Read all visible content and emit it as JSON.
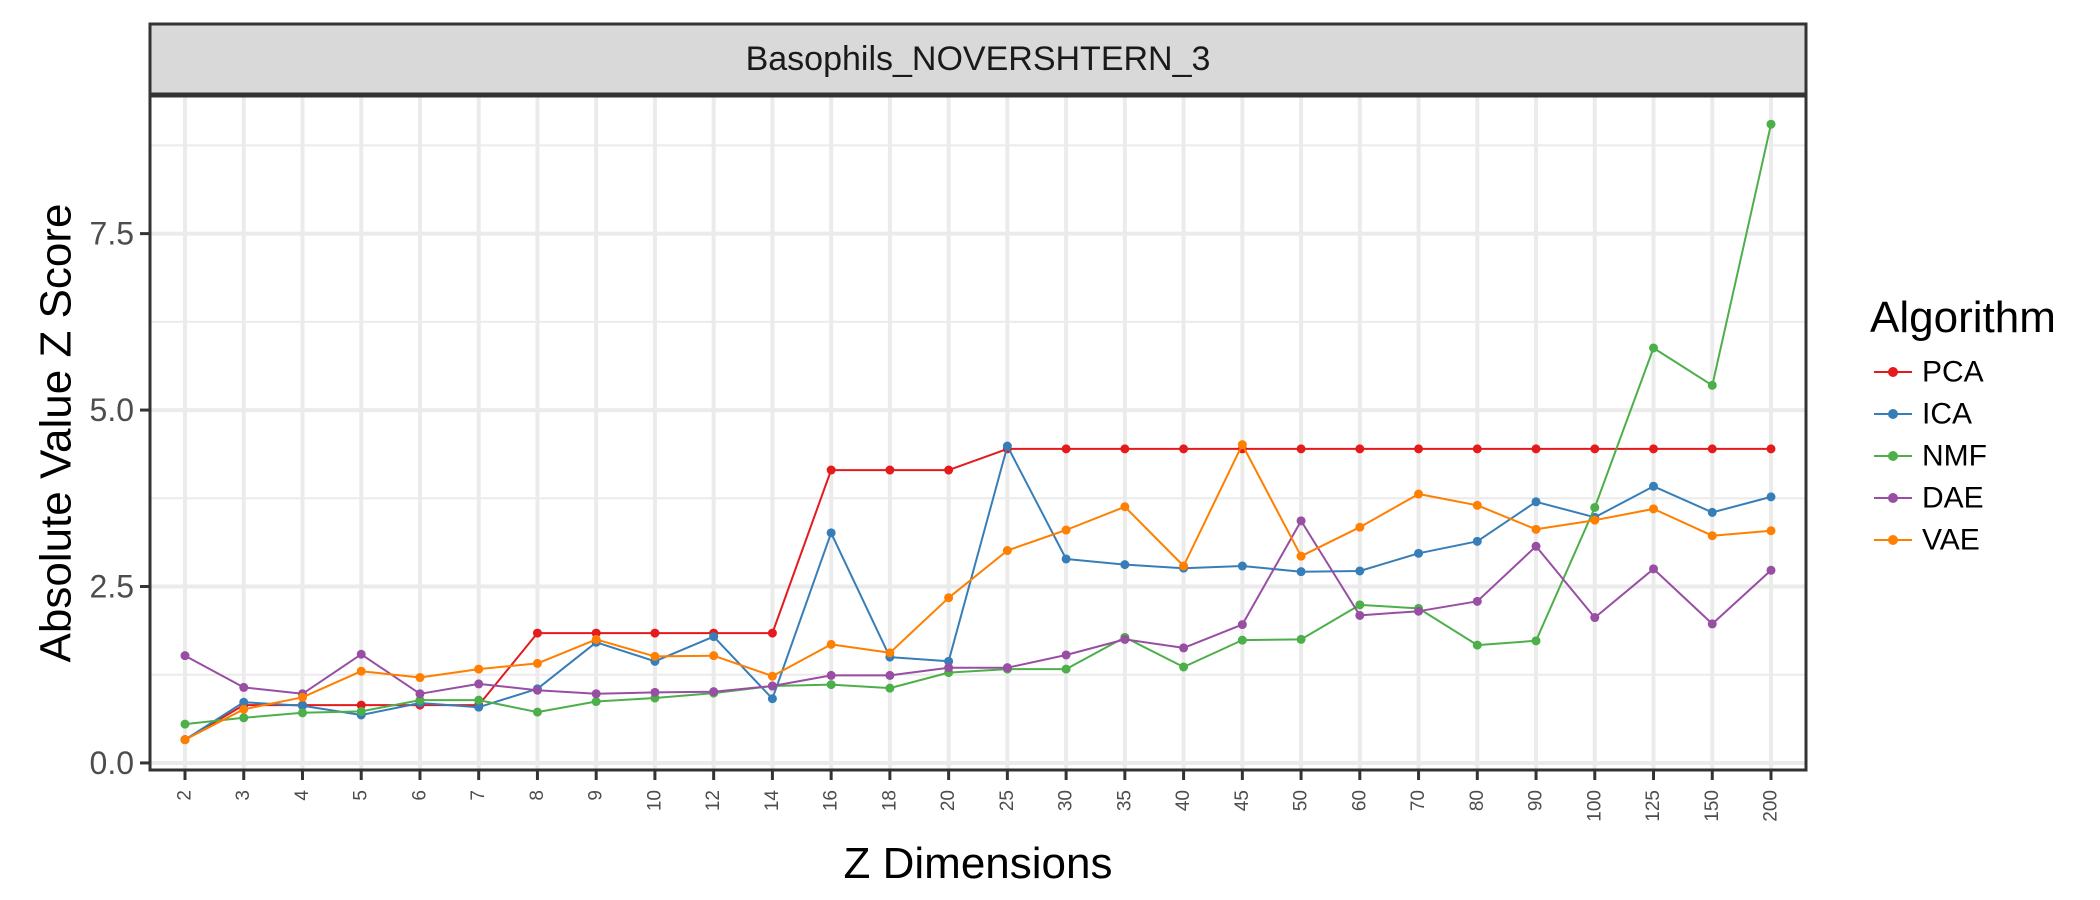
{
  "chart_data": {
    "type": "line",
    "facet_title": "Basophils_NOVERSHTERN_3",
    "xlabel": "Z Dimensions",
    "ylabel": "Absolute Value Z Score",
    "categories": [
      "2",
      "3",
      "4",
      "5",
      "6",
      "7",
      "8",
      "9",
      "10",
      "12",
      "14",
      "16",
      "18",
      "20",
      "25",
      "30",
      "35",
      "40",
      "45",
      "50",
      "60",
      "70",
      "80",
      "90",
      "100",
      "125",
      "150",
      "200"
    ],
    "y_ticks": [
      0,
      2.5,
      5,
      7.5
    ],
    "y_tick_labels": [
      "0.0",
      "2.5",
      "5.0",
      "7.5"
    ],
    "ylim": [
      -0.1,
      9.45
    ],
    "grid": true,
    "legend_title": "Algorithm",
    "legend_position": "right",
    "series": [
      {
        "name": "PCA",
        "color": "#E41A1C",
        "values": [
          0.33,
          0.82,
          0.82,
          0.82,
          0.82,
          0.82,
          1.84,
          1.84,
          1.84,
          1.84,
          1.84,
          4.15,
          4.15,
          4.15,
          4.45,
          4.45,
          4.45,
          4.45,
          4.45,
          4.45,
          4.45,
          4.45,
          4.45,
          4.45,
          4.45,
          4.45,
          4.45,
          4.45
        ]
      },
      {
        "name": "ICA",
        "color": "#377EB8",
        "values": [
          0.33,
          0.86,
          0.81,
          0.68,
          0.85,
          0.79,
          1.05,
          1.71,
          1.44,
          1.79,
          0.91,
          3.26,
          1.5,
          1.44,
          4.49,
          2.89,
          2.81,
          2.76,
          2.79,
          2.71,
          2.72,
          2.97,
          3.14,
          3.7,
          3.48,
          3.92,
          3.55,
          3.77
        ]
      },
      {
        "name": "NMF",
        "color": "#4DAF4A",
        "values": [
          0.55,
          0.64,
          0.71,
          0.73,
          0.89,
          0.89,
          0.72,
          0.87,
          0.92,
          0.99,
          1.09,
          1.11,
          1.06,
          1.28,
          1.33,
          1.33,
          1.78,
          1.36,
          1.74,
          1.75,
          2.24,
          2.19,
          1.67,
          1.73,
          3.62,
          5.88,
          5.35,
          9.05
        ]
      },
      {
        "name": "DAE",
        "color": "#984EA3",
        "values": [
          1.52,
          1.07,
          0.98,
          1.54,
          0.98,
          1.12,
          1.03,
          0.98,
          1.0,
          1.01,
          1.09,
          1.24,
          1.24,
          1.35,
          1.35,
          1.53,
          1.75,
          1.63,
          1.96,
          3.43,
          2.09,
          2.15,
          2.29,
          3.07,
          2.06,
          2.75,
          1.97,
          2.73
        ]
      },
      {
        "name": "VAE",
        "color": "#FF7F00",
        "values": [
          0.33,
          0.76,
          0.93,
          1.3,
          1.21,
          1.33,
          1.41,
          1.75,
          1.51,
          1.52,
          1.23,
          1.68,
          1.56,
          2.34,
          3.01,
          3.3,
          3.63,
          2.79,
          4.51,
          2.93,
          3.34,
          3.81,
          3.65,
          3.31,
          3.44,
          3.6,
          3.22,
          3.29
        ]
      }
    ]
  },
  "colors": {
    "panel_border": "#333333",
    "strip_fill": "#D9D9D9",
    "grid": "#EBEBEB"
  }
}
